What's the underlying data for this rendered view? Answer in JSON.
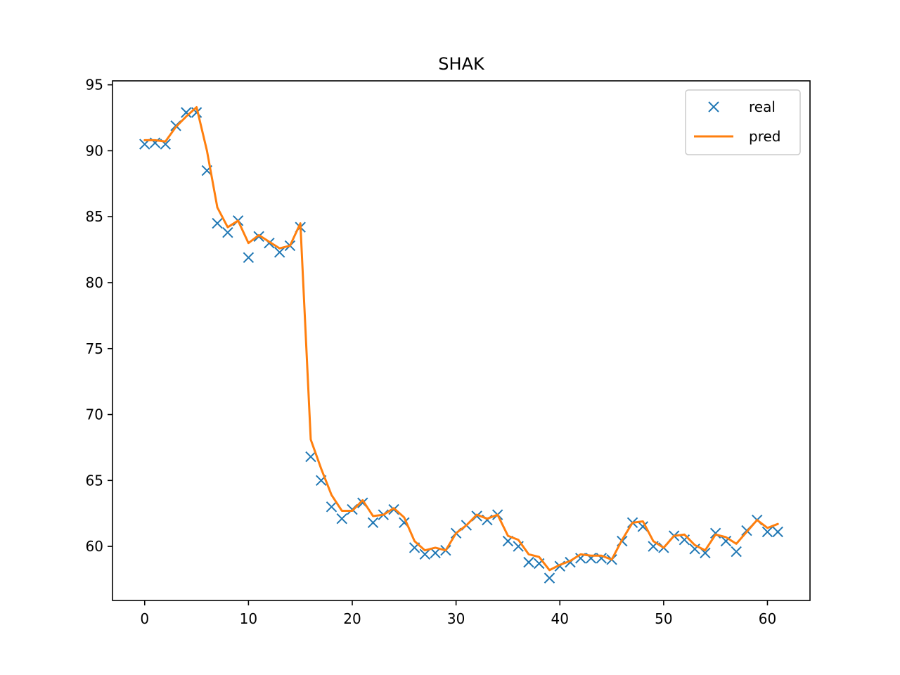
{
  "chart_data": {
    "type": "line",
    "title": "SHAK",
    "xlabel": "",
    "ylabel": "",
    "xlim": [
      -3.1,
      64.1
    ],
    "ylim": [
      55.9,
      95.3
    ],
    "xticks": [
      0,
      10,
      20,
      30,
      40,
      50,
      60
    ],
    "yticks": [
      60,
      65,
      70,
      75,
      80,
      85,
      90,
      95
    ],
    "grid": false,
    "legend_position": "top-right",
    "series": [
      {
        "name": "real",
        "style": "markers-x",
        "color": "#1f77b4",
        "x": [
          0,
          1,
          2,
          3,
          4,
          5,
          6,
          7,
          8,
          9,
          10,
          11,
          12,
          13,
          14,
          15,
          16,
          17,
          18,
          19,
          20,
          21,
          22,
          23,
          24,
          25,
          26,
          27,
          28,
          29,
          30,
          31,
          32,
          33,
          34,
          35,
          36,
          37,
          38,
          39,
          40,
          41,
          42,
          43,
          44,
          45,
          46,
          47,
          48,
          49,
          50,
          51,
          52,
          53,
          54,
          55,
          56,
          57,
          58,
          59,
          60,
          61
        ],
        "values": [
          90.5,
          90.6,
          90.5,
          91.9,
          92.9,
          92.9,
          88.5,
          84.5,
          83.8,
          84.7,
          81.9,
          83.5,
          83.0,
          82.3,
          82.8,
          84.2,
          66.8,
          65.0,
          63.0,
          62.1,
          62.8,
          63.3,
          61.8,
          62.4,
          62.8,
          61.8,
          59.9,
          59.4,
          59.5,
          59.7,
          61.0,
          61.6,
          62.3,
          62.0,
          62.4,
          60.4,
          60.0,
          58.8,
          58.7,
          57.6,
          58.5,
          58.8,
          59.1,
          59.1,
          59.1,
          59.0,
          60.4,
          61.8,
          61.5,
          60.0,
          59.9,
          60.8,
          60.5,
          59.8,
          59.5,
          61.0,
          60.4,
          59.6,
          61.2,
          62.0,
          61.1,
          61.1
        ]
      },
      {
        "name": "pred",
        "style": "line",
        "color": "#ff7f0e",
        "x": [
          0,
          1,
          2,
          3,
          4,
          5,
          6,
          7,
          8,
          9,
          10,
          11,
          12,
          13,
          14,
          15,
          16,
          17,
          18,
          19,
          20,
          21,
          22,
          23,
          24,
          25,
          26,
          27,
          28,
          29,
          30,
          31,
          32,
          33,
          34,
          35,
          36,
          37,
          38,
          39,
          40,
          41,
          42,
          43,
          44,
          45,
          46,
          47,
          48,
          49,
          50,
          51,
          52,
          53,
          54,
          55,
          56,
          57,
          58,
          59,
          60,
          61
        ],
        "values": [
          90.8,
          90.8,
          90.7,
          91.8,
          92.6,
          93.3,
          90.0,
          85.7,
          84.2,
          84.7,
          83.0,
          83.6,
          83.1,
          82.6,
          82.8,
          84.5,
          68.1,
          65.9,
          63.9,
          62.7,
          62.7,
          63.5,
          62.3,
          62.4,
          62.9,
          62.2,
          60.4,
          59.7,
          59.9,
          59.7,
          61.0,
          61.6,
          62.4,
          62.1,
          62.4,
          60.8,
          60.5,
          59.4,
          59.2,
          58.2,
          58.6,
          58.9,
          59.4,
          59.3,
          59.3,
          59.0,
          60.5,
          61.8,
          61.9,
          60.4,
          59.9,
          60.8,
          60.9,
          60.1,
          59.7,
          60.9,
          60.7,
          60.2,
          61.1,
          62.0,
          61.4,
          61.7
        ]
      }
    ]
  }
}
